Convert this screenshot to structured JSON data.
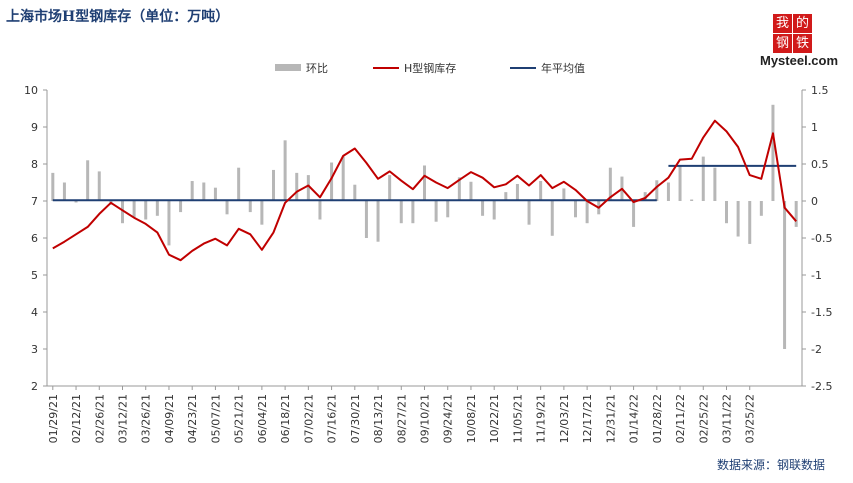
{
  "title": "上海市场H型钢库存（单位：万吨）",
  "source": "数据来源：钢联数据",
  "logo": {
    "chars": [
      "我",
      "的",
      "钢",
      "铁"
    ],
    "word": "Mysteel.com"
  },
  "chart_data": {
    "type": "bar+line",
    "title": "上海市场H型钢库存（单位：万吨）",
    "legend": [
      "环比",
      "H型钢库存",
      "年平均值"
    ],
    "legend_position": "top",
    "y_left": {
      "ylim": [
        2,
        10
      ],
      "ticks": [
        "2",
        "3",
        "4",
        "5",
        "6",
        "7",
        "8",
        "9",
        "10"
      ]
    },
    "y_right": {
      "ylim": [
        -2.5,
        1.5
      ],
      "ticks": [
        "-2.5",
        "-2",
        "-1.5",
        "-1",
        "-0.5",
        "0",
        "0.5",
        "1",
        "1.5"
      ]
    },
    "x_tick_labels": [
      "01/29/21",
      "02/12/21",
      "02/26/21",
      "03/12/21",
      "03/26/21",
      "04/09/21",
      "04/23/21",
      "05/07/21",
      "05/21/21",
      "06/04/21",
      "06/18/21",
      "07/02/21",
      "07/16/21",
      "07/30/21",
      "08/13/21",
      "08/27/21",
      "09/10/21",
      "09/24/21",
      "10/08/21",
      "10/22/21",
      "11/05/21",
      "11/19/21",
      "12/03/21",
      "12/17/21",
      "12/31/21",
      "01/14/22",
      "01/28/22",
      "02/11/22",
      "02/25/22",
      "03/11/22",
      "03/25/22"
    ],
    "series": [
      {
        "name": "H型钢库存",
        "type": "line",
        "color": "#c00000",
        "axis": "left",
        "values": [
          5.72,
          5.9,
          6.1,
          6.3,
          6.65,
          6.95,
          6.75,
          6.55,
          6.38,
          6.15,
          5.55,
          5.4,
          5.65,
          5.85,
          5.98,
          5.8,
          6.25,
          6.1,
          5.68,
          6.15,
          6.95,
          7.25,
          7.42,
          7.1,
          7.62,
          8.22,
          8.42,
          8.03,
          7.6,
          7.8,
          7.55,
          7.32,
          7.68,
          7.5,
          7.35,
          7.57,
          7.78,
          7.63,
          7.37,
          7.45,
          7.68,
          7.42,
          7.7,
          7.35,
          7.52,
          7.3,
          7.0,
          6.82,
          7.1,
          7.33,
          6.97,
          7.08,
          7.38,
          7.63,
          8.12,
          8.14,
          8.72,
          9.17,
          8.88,
          8.46,
          7.7,
          7.6,
          8.83,
          6.82,
          6.45
        ]
      },
      {
        "name": "环比",
        "type": "bar",
        "color": "#b7b7b7",
        "axis": "right",
        "values": [
          0.38,
          0.25,
          -0.02,
          0.55,
          0.4,
          -0.05,
          -0.3,
          -0.22,
          -0.25,
          -0.2,
          -0.6,
          -0.15,
          0.27,
          0.25,
          0.18,
          -0.18,
          0.45,
          -0.15,
          -0.32,
          0.42,
          0.82,
          0.38,
          0.35,
          -0.25,
          0.52,
          0.6,
          0.22,
          -0.5,
          -0.55,
          0.35,
          -0.3,
          -0.3,
          0.48,
          -0.28,
          -0.22,
          0.32,
          0.26,
          -0.2,
          -0.25,
          0.12,
          0.23,
          -0.32,
          0.27,
          -0.47,
          0.17,
          -0.22,
          -0.3,
          -0.18,
          0.45,
          0.33,
          -0.35,
          0.12,
          0.28,
          0.25,
          0.48,
          0.02,
          0.6,
          0.45,
          -0.3,
          -0.48,
          -0.58,
          -0.2,
          1.3,
          -2.0,
          -0.35
        ]
      },
      {
        "name": "年平均值",
        "type": "line",
        "color": "#1f3f73",
        "axis": "left",
        "segments": [
          {
            "start_index": 0,
            "end_index": 52,
            "value": 7.02
          },
          {
            "start_index": 53,
            "end_index": 64,
            "value": 7.95
          }
        ]
      }
    ]
  }
}
